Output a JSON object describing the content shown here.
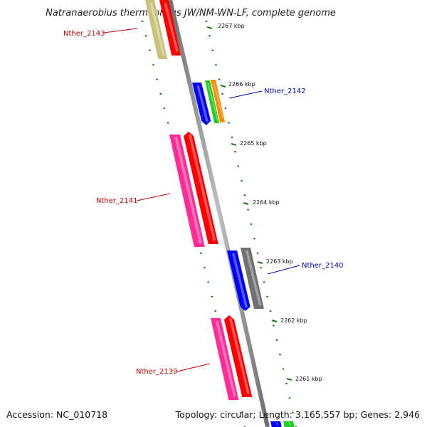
{
  "title": "Natranaerobius thermophilus JW/NM-WN-LF, complete genome",
  "footer": {
    "accession": "Accession: NC_010718",
    "summary": "Topology: circular; Length: 3,165,557 bp; Genes: 2,946"
  },
  "ticks": [
    "2267 kbp",
    "2266 kbp",
    "2265 kbp",
    "2264 kbp",
    "2263 kbp",
    "2262 kbp",
    "2261 kbp"
  ],
  "genes": [
    {
      "label": "Nther_2143",
      "color": "#cc0000"
    },
    {
      "label": "Nther_2142",
      "color": "#0000bb"
    },
    {
      "label": "Nther_2141",
      "color": "#cc0000"
    },
    {
      "label": "Nther_2140",
      "color": "#0000bb"
    },
    {
      "label": "Nther_2139",
      "color": "#cc0000"
    }
  ],
  "colors": {
    "backbone": "#8c8c8c",
    "dots": "#1a7a1a",
    "red": "#ff0000",
    "magenta": "#ff2b96",
    "blue": "#0000ff",
    "green": "#22cc22",
    "orange": "#ff8c00",
    "grey": "#707070",
    "olive": "#c8c27a"
  }
}
